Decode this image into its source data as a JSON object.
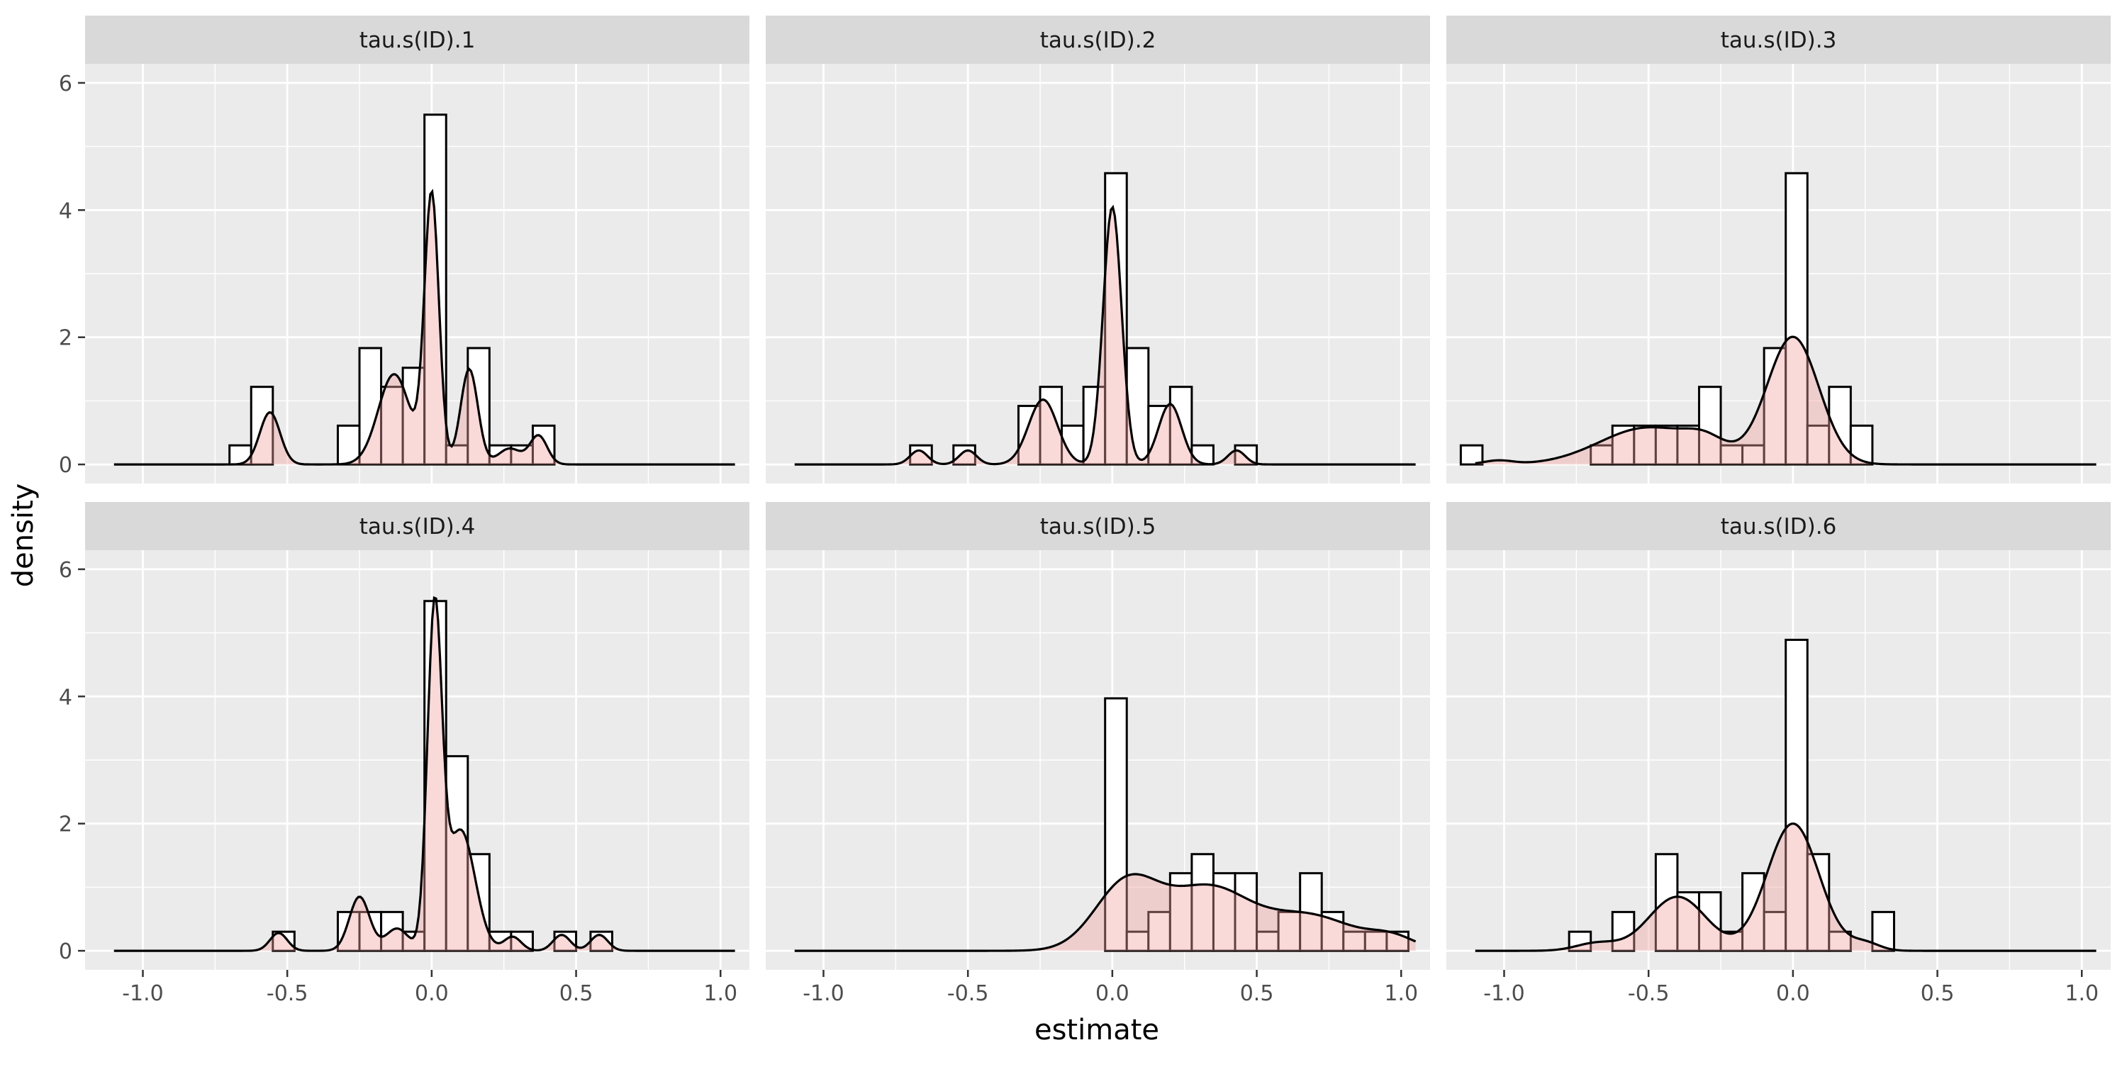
{
  "chart_data": {
    "type": "histogram-density-facets",
    "xlabel": "estimate",
    "ylabel": "density",
    "xlim": [
      -1.2,
      1.1
    ],
    "ylim": [
      -0.3,
      6.3
    ],
    "x_ticks": [
      -1.0,
      -0.5,
      0.0,
      0.5,
      1.0
    ],
    "x_tick_labels": [
      "-1.0",
      "-0.5",
      "0.0",
      "0.5",
      "1.0"
    ],
    "y_ticks": [
      0,
      2,
      4,
      6
    ],
    "y_tick_labels": [
      "0",
      "2",
      "4",
      "6"
    ],
    "grid": true,
    "legend": "none",
    "density_range": [
      -1.1,
      1.05
    ],
    "colors": {
      "panel_bg": "#ebebeb",
      "grid": "#ffffff",
      "strip_bg": "#d9d9d9",
      "bar_fill": "#ffffff",
      "bar_stroke": "#000000",
      "density_fill": "#f2a0a0",
      "density_fill_opacity": 0.4,
      "density_stroke": "#000000"
    },
    "panels": [
      {
        "label": "tau.s(ID).1",
        "histogram": [
          {
            "x0": -0.7,
            "x1": -0.625,
            "y": 0.3
          },
          {
            "x0": -0.625,
            "x1": -0.55,
            "y": 1.22
          },
          {
            "x0": -0.325,
            "x1": -0.25,
            "y": 0.61
          },
          {
            "x0": -0.25,
            "x1": -0.175,
            "y": 1.83
          },
          {
            "x0": -0.175,
            "x1": -0.1,
            "y": 1.22
          },
          {
            "x0": -0.1,
            "x1": -0.025,
            "y": 1.52
          },
          {
            "x0": -0.025,
            "x1": 0.05,
            "y": 5.5
          },
          {
            "x0": 0.05,
            "x1": 0.125,
            "y": 0.3
          },
          {
            "x0": 0.125,
            "x1": 0.2,
            "y": 1.83
          },
          {
            "x0": 0.2,
            "x1": 0.275,
            "y": 0.3
          },
          {
            "x0": 0.275,
            "x1": 0.35,
            "y": 0.3
          },
          {
            "x0": 0.35,
            "x1": 0.425,
            "y": 0.61
          }
        ],
        "density_components": [
          {
            "mu": -0.56,
            "sd": 0.035,
            "h": 0.82
          },
          {
            "mu": -0.13,
            "sd": 0.055,
            "h": 1.42
          },
          {
            "mu": 0.0,
            "sd": 0.025,
            "h": 4.22
          },
          {
            "mu": 0.13,
            "sd": 0.03,
            "h": 1.5
          },
          {
            "mu": 0.37,
            "sd": 0.03,
            "h": 0.45
          },
          {
            "mu": 0.27,
            "sd": 0.04,
            "h": 0.25
          }
        ]
      },
      {
        "label": "tau.s(ID).2",
        "histogram": [
          {
            "x0": -0.7,
            "x1": -0.625,
            "y": 0.3
          },
          {
            "x0": -0.55,
            "x1": -0.475,
            "y": 0.3
          },
          {
            "x0": -0.325,
            "x1": -0.25,
            "y": 0.92
          },
          {
            "x0": -0.25,
            "x1": -0.175,
            "y": 1.22
          },
          {
            "x0": -0.175,
            "x1": -0.1,
            "y": 0.61
          },
          {
            "x0": -0.1,
            "x1": -0.025,
            "y": 1.22
          },
          {
            "x0": -0.025,
            "x1": 0.05,
            "y": 4.58
          },
          {
            "x0": 0.05,
            "x1": 0.125,
            "y": 1.83
          },
          {
            "x0": 0.125,
            "x1": 0.2,
            "y": 0.92
          },
          {
            "x0": 0.2,
            "x1": 0.275,
            "y": 1.22
          },
          {
            "x0": 0.275,
            "x1": 0.35,
            "y": 0.3
          },
          {
            "x0": 0.425,
            "x1": 0.5,
            "y": 0.3
          }
        ],
        "density_components": [
          {
            "mu": -0.67,
            "sd": 0.03,
            "h": 0.22
          },
          {
            "mu": -0.5,
            "sd": 0.03,
            "h": 0.22
          },
          {
            "mu": -0.24,
            "sd": 0.05,
            "h": 1.02
          },
          {
            "mu": 0.0,
            "sd": 0.032,
            "h": 4.05
          },
          {
            "mu": 0.2,
            "sd": 0.04,
            "h": 0.95
          },
          {
            "mu": 0.43,
            "sd": 0.03,
            "h": 0.22
          }
        ]
      },
      {
        "label": "tau.s(ID).3",
        "histogram": [
          {
            "x0": -1.15,
            "x1": -1.075,
            "y": 0.3
          },
          {
            "x0": -0.7,
            "x1": -0.625,
            "y": 0.3
          },
          {
            "x0": -0.625,
            "x1": -0.55,
            "y": 0.61
          },
          {
            "x0": -0.55,
            "x1": -0.475,
            "y": 0.61
          },
          {
            "x0": -0.475,
            "x1": -0.4,
            "y": 0.61
          },
          {
            "x0": -0.4,
            "x1": -0.325,
            "y": 0.61
          },
          {
            "x0": -0.325,
            "x1": -0.25,
            "y": 1.22
          },
          {
            "x0": -0.25,
            "x1": -0.175,
            "y": 0.3
          },
          {
            "x0": -0.175,
            "x1": -0.1,
            "y": 0.3
          },
          {
            "x0": -0.1,
            "x1": -0.025,
            "y": 1.83
          },
          {
            "x0": -0.025,
            "x1": 0.05,
            "y": 4.58
          },
          {
            "x0": 0.05,
            "x1": 0.125,
            "y": 0.61
          },
          {
            "x0": 0.125,
            "x1": 0.2,
            "y": 1.22
          },
          {
            "x0": 0.2,
            "x1": 0.275,
            "y": 0.61
          }
        ],
        "density_components": [
          {
            "mu": -1.02,
            "sd": 0.05,
            "h": 0.06
          },
          {
            "mu": -0.5,
            "sd": 0.17,
            "h": 0.58
          },
          {
            "mu": -0.3,
            "sd": 0.07,
            "h": 0.22
          },
          {
            "mu": 0.0,
            "sd": 0.09,
            "h": 2.0
          }
        ]
      },
      {
        "label": "tau.s(ID).4",
        "histogram": [
          {
            "x0": -0.55,
            "x1": -0.475,
            "y": 0.3
          },
          {
            "x0": -0.325,
            "x1": -0.25,
            "y": 0.61
          },
          {
            "x0": -0.25,
            "x1": -0.175,
            "y": 0.61
          },
          {
            "x0": -0.175,
            "x1": -0.1,
            "y": 0.61
          },
          {
            "x0": -0.1,
            "x1": -0.025,
            "y": 0.3
          },
          {
            "x0": -0.025,
            "x1": 0.05,
            "y": 5.5
          },
          {
            "x0": 0.05,
            "x1": 0.125,
            "y": 3.06
          },
          {
            "x0": 0.125,
            "x1": 0.2,
            "y": 1.52
          },
          {
            "x0": 0.2,
            "x1": 0.275,
            "y": 0.3
          },
          {
            "x0": 0.275,
            "x1": 0.35,
            "y": 0.3
          },
          {
            "x0": 0.425,
            "x1": 0.5,
            "y": 0.3
          },
          {
            "x0": 0.55,
            "x1": 0.625,
            "y": 0.3
          }
        ],
        "density_components": [
          {
            "mu": -0.53,
            "sd": 0.03,
            "h": 0.28
          },
          {
            "mu": -0.25,
            "sd": 0.035,
            "h": 0.85
          },
          {
            "mu": -0.12,
            "sd": 0.04,
            "h": 0.35
          },
          {
            "mu": 0.01,
            "sd": 0.025,
            "h": 5.2
          },
          {
            "mu": 0.1,
            "sd": 0.05,
            "h": 1.9
          },
          {
            "mu": 0.28,
            "sd": 0.03,
            "h": 0.22
          },
          {
            "mu": 0.45,
            "sd": 0.03,
            "h": 0.25
          },
          {
            "mu": 0.58,
            "sd": 0.03,
            "h": 0.25
          }
        ]
      },
      {
        "label": "tau.s(ID).5",
        "histogram": [
          {
            "x0": -0.025,
            "x1": 0.05,
            "y": 3.97
          },
          {
            "x0": 0.05,
            "x1": 0.125,
            "y": 0.3
          },
          {
            "x0": 0.125,
            "x1": 0.2,
            "y": 0.61
          },
          {
            "x0": 0.2,
            "x1": 0.275,
            "y": 1.22
          },
          {
            "x0": 0.275,
            "x1": 0.35,
            "y": 1.52
          },
          {
            "x0": 0.35,
            "x1": 0.425,
            "y": 1.22
          },
          {
            "x0": 0.425,
            "x1": 0.5,
            "y": 1.22
          },
          {
            "x0": 0.5,
            "x1": 0.575,
            "y": 0.3
          },
          {
            "x0": 0.575,
            "x1": 0.65,
            "y": 0.61
          },
          {
            "x0": 0.65,
            "x1": 0.725,
            "y": 1.22
          },
          {
            "x0": 0.725,
            "x1": 0.8,
            "y": 0.61
          },
          {
            "x0": 0.8,
            "x1": 0.875,
            "y": 0.3
          },
          {
            "x0": 0.875,
            "x1": 0.95,
            "y": 0.3
          },
          {
            "x0": 0.95,
            "x1": 1.025,
            "y": 0.3
          }
        ],
        "density_components": [
          {
            "mu": 0.05,
            "sd": 0.11,
            "h": 1.05
          },
          {
            "mu": 0.33,
            "sd": 0.14,
            "h": 0.95
          },
          {
            "mu": 0.68,
            "sd": 0.16,
            "h": 0.55
          },
          {
            "mu": 0.97,
            "sd": 0.08,
            "h": 0.18
          }
        ]
      },
      {
        "label": "tau.s(ID).6",
        "histogram": [
          {
            "x0": -0.775,
            "x1": -0.7,
            "y": 0.3
          },
          {
            "x0": -0.625,
            "x1": -0.55,
            "y": 0.61
          },
          {
            "x0": -0.475,
            "x1": -0.4,
            "y": 1.52
          },
          {
            "x0": -0.4,
            "x1": -0.325,
            "y": 0.92
          },
          {
            "x0": -0.325,
            "x1": -0.25,
            "y": 0.92
          },
          {
            "x0": -0.25,
            "x1": -0.175,
            "y": 0.3
          },
          {
            "x0": -0.175,
            "x1": -0.1,
            "y": 1.22
          },
          {
            "x0": -0.1,
            "x1": -0.025,
            "y": 0.61
          },
          {
            "x0": -0.025,
            "x1": 0.05,
            "y": 4.89
          },
          {
            "x0": 0.05,
            "x1": 0.125,
            "y": 1.52
          },
          {
            "x0": 0.125,
            "x1": 0.2,
            "y": 0.3
          },
          {
            "x0": 0.275,
            "x1": 0.35,
            "y": 0.61
          }
        ],
        "density_components": [
          {
            "mu": -0.4,
            "sd": 0.1,
            "h": 0.85
          },
          {
            "mu": -0.68,
            "sd": 0.07,
            "h": 0.12
          },
          {
            "mu": 0.0,
            "sd": 0.09,
            "h": 2.0
          },
          {
            "mu": 0.25,
            "sd": 0.05,
            "h": 0.12
          }
        ]
      }
    ]
  }
}
